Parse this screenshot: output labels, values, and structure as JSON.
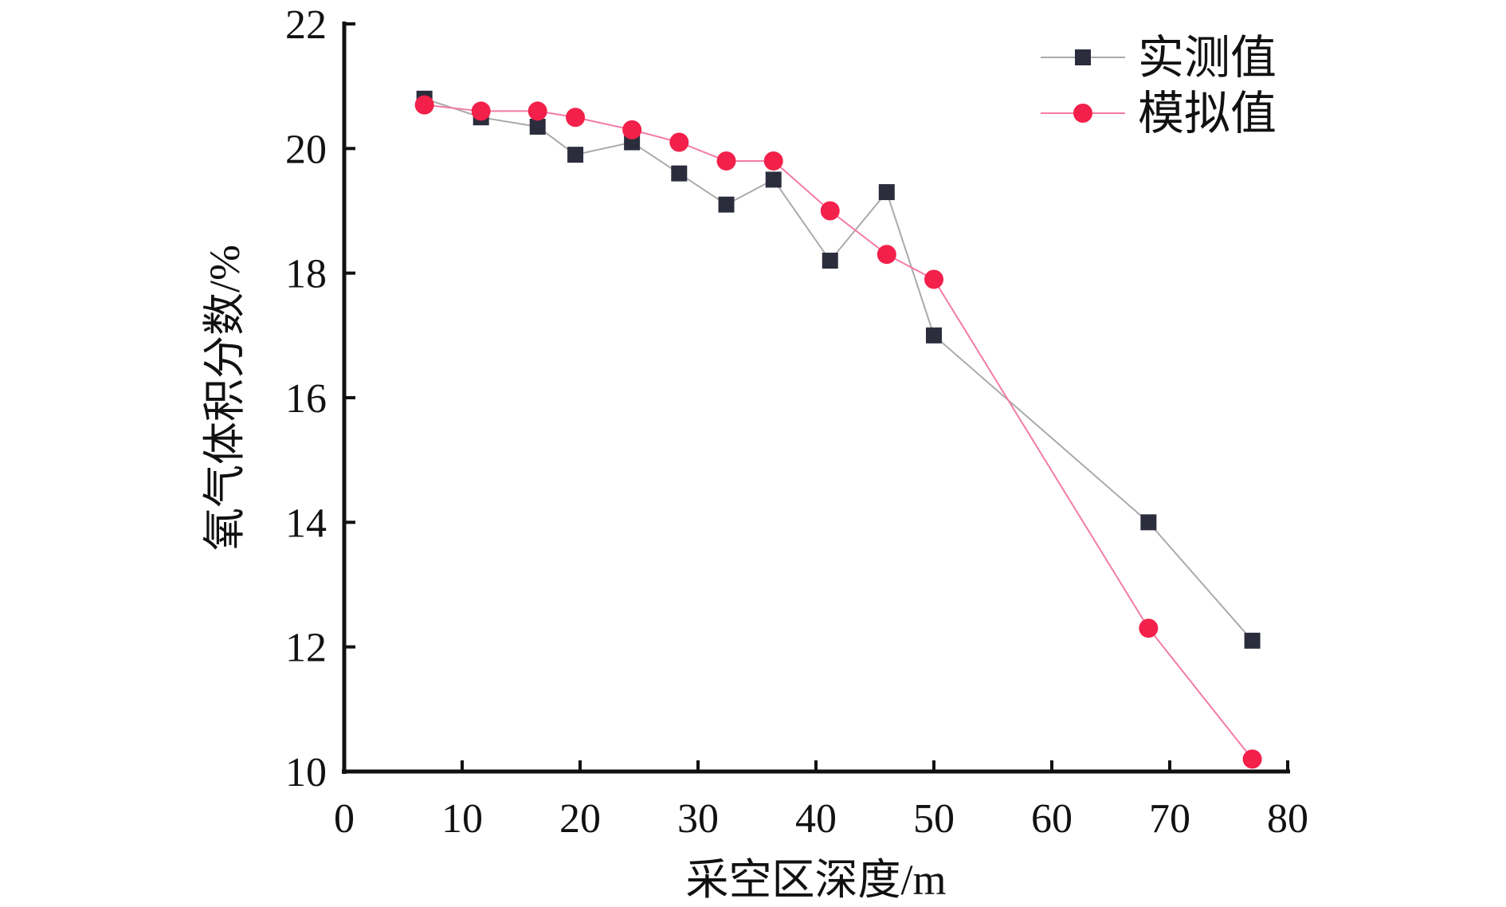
{
  "chart_data": {
    "type": "line",
    "title": "",
    "xlabel": "采空区深度/m",
    "ylabel": "氧气体积分数/%",
    "xlim": [
      0,
      80
    ],
    "ylim": [
      10,
      22
    ],
    "xticks": [
      0,
      10,
      20,
      30,
      40,
      50,
      60,
      70,
      80
    ],
    "yticks": [
      10,
      12,
      14,
      16,
      18,
      20,
      22
    ],
    "grid": false,
    "legend_position": "top-right",
    "series": [
      {
        "name": "实测值",
        "marker": "square",
        "line_color": "#aaaaaa",
        "marker_color": "#2b2d3d",
        "x": [
          6.8,
          11.6,
          16.4,
          19.6,
          24.4,
          28.4,
          32.4,
          36.4,
          41.2,
          46.0,
          50.0,
          68.2,
          77.0
        ],
        "y": [
          20.8,
          20.5,
          20.35,
          19.9,
          20.1,
          19.6,
          19.1,
          19.5,
          18.2,
          19.3,
          17.0,
          14.0,
          12.1
        ]
      },
      {
        "name": "模拟值",
        "marker": "circle",
        "line_color": "#f47aa6",
        "marker_color": "#f2204a",
        "x": [
          6.8,
          11.6,
          16.4,
          19.6,
          24.4,
          28.4,
          32.4,
          36.4,
          41.2,
          46.0,
          50.0,
          68.2,
          77.0
        ],
        "y": [
          20.7,
          20.6,
          20.6,
          20.5,
          20.3,
          20.1,
          19.8,
          19.8,
          19.0,
          18.3,
          17.9,
          12.3,
          10.2
        ]
      }
    ]
  }
}
